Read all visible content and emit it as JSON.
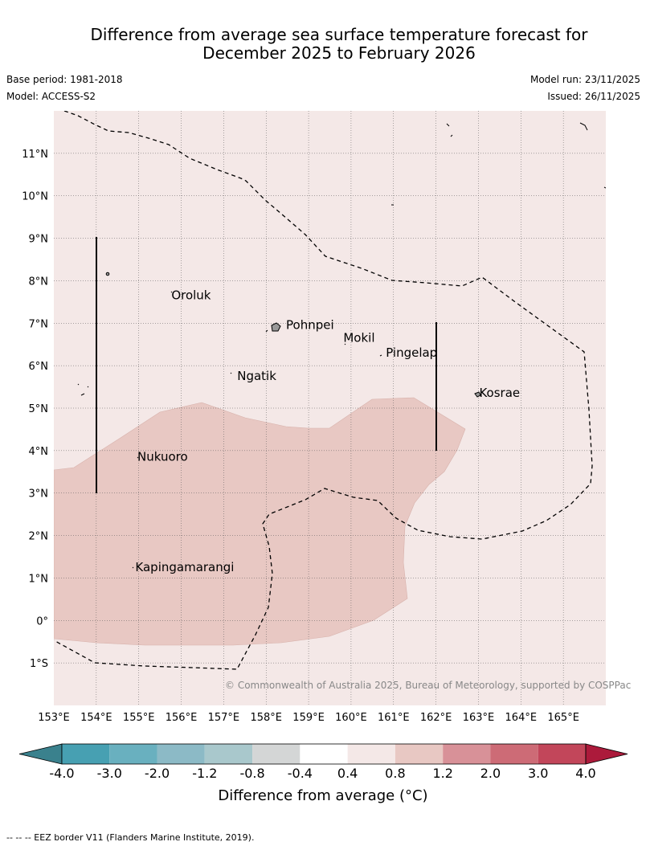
{
  "title": {
    "line1": "Difference from average sea surface temperature forecast for",
    "line2": "December 2025 to February 2026"
  },
  "meta": {
    "base_period": "Base period: 1981-2018",
    "model": "Model: ACCESS-S2",
    "model_run": "Model run: 23/11/2025",
    "issued": "Issued: 26/11/2025"
  },
  "map": {
    "lon_range": [
      153,
      166
    ],
    "lat_range": [
      -2,
      12
    ],
    "background_color": "#f4e8e7",
    "anomaly_fill_color": "#e8c8c3",
    "lon_ticks": [
      "153°E",
      "154°E",
      "155°E",
      "156°E",
      "157°E",
      "158°E",
      "159°E",
      "160°E",
      "161°E",
      "162°E",
      "163°E",
      "164°E",
      "165°E"
    ],
    "lat_ticks": [
      "1°S",
      "0°",
      "1°N",
      "2°N",
      "3°N",
      "4°N",
      "5°N",
      "6°N",
      "7°N",
      "8°N",
      "9°N",
      "10°N",
      "11°N"
    ],
    "places": [
      {
        "name": "Oroluk",
        "lon": 155.75,
        "lat": 7.6
      },
      {
        "name": "Pohnpei",
        "lon": 158.45,
        "lat": 6.9
      },
      {
        "name": "Mokil",
        "lon": 159.8,
        "lat": 6.6
      },
      {
        "name": "Pingelap",
        "lon": 160.8,
        "lat": 6.25
      },
      {
        "name": "Ngatik",
        "lon": 157.3,
        "lat": 5.7
      },
      {
        "name": "Kosrae",
        "lon": 163.0,
        "lat": 5.3
      },
      {
        "name": "Nukuoro",
        "lon": 154.95,
        "lat": 3.8
      },
      {
        "name": "Kapingamarangi",
        "lon": 154.9,
        "lat": 1.2
      }
    ],
    "copyright": "© Commonwealth of Australia 2025, Bureau of Meteorology, supported by COSPPac"
  },
  "colorbar": {
    "ticks": [
      "-4.0",
      "-3.0",
      "-2.0",
      "-1.2",
      "-0.8",
      "-0.4",
      "0.4",
      "0.8",
      "1.2",
      "2.0",
      "3.0",
      "4.0"
    ],
    "colors": [
      "#47a0b2",
      "#69b0bf",
      "#8cbac6",
      "#a9c8cc",
      "#d4d6d6",
      "#ffffff",
      "#f4e8e7",
      "#e8c8c3",
      "#d89198",
      "#cd6b76",
      "#c2465a"
    ],
    "under_color": "#3a818d",
    "over_color": "#ac1a3b",
    "label": "Difference from average (°C)"
  },
  "footer": {
    "eez_note": "--  --  -- EEZ border V11 (Flanders Marine Institute, 2019)."
  }
}
